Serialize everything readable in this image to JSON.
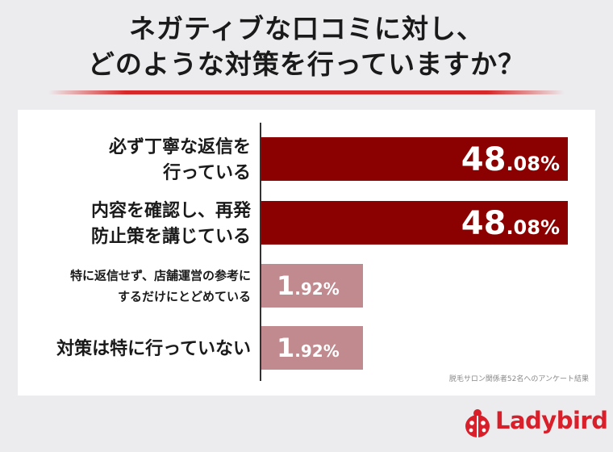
{
  "title": {
    "line1": "ネガティブな口コミに対し、",
    "line2": "どのような対策を行っていますか？"
  },
  "source_note": "脱毛サロン関係者52名へのアンケート結果",
  "logo": {
    "text": "Ladybird",
    "icon": "ladybug-icon"
  },
  "colors": {
    "bar_major": "#8b0000",
    "bar_minor": "#c08a8e",
    "accent": "#d62828"
  },
  "chart_data": {
    "type": "bar",
    "orientation": "horizontal",
    "categories": [
      [
        "必ず丁寧な返信を",
        "行っている"
      ],
      [
        "内容を確認し、再発",
        "防止策を講じている"
      ],
      [
        "特に返信せず、店舗運営の参考に",
        "するだけにとどめている"
      ],
      [
        "対策は特に行っていない"
      ]
    ],
    "values": [
      48.08,
      48.08,
      1.92,
      1.92
    ],
    "value_labels": [
      {
        "int": "48",
        "dec": ".08%"
      },
      {
        "int": "48",
        "dec": ".08%"
      },
      {
        "int": "1",
        "dec": ".92%"
      },
      {
        "int": "1",
        "dec": ".92%"
      }
    ],
    "xlim": [
      0,
      50
    ],
    "grid": false,
    "legend": "none"
  }
}
